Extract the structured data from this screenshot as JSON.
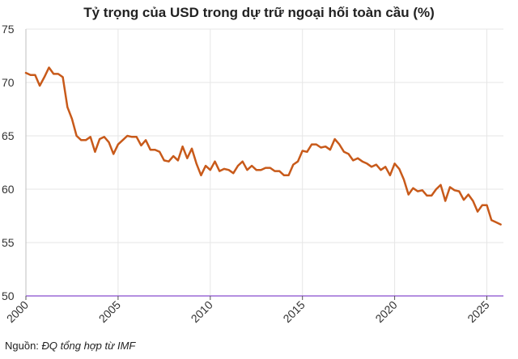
{
  "chart_data": {
    "type": "line",
    "title": "Tỷ trọng của USD trong dự trữ ngoại hối toàn cầu (%)",
    "xlabel": "",
    "ylabel": "",
    "xlim": [
      2000,
      2025.9
    ],
    "ylim": [
      50,
      75
    ],
    "grid": true,
    "x_ticks": [
      2000,
      2005,
      2010,
      2015,
      2020,
      2025
    ],
    "y_ticks": [
      50,
      55,
      60,
      65,
      70,
      75
    ],
    "series": [
      {
        "name": "",
        "color": "#c85a1a",
        "x": [
          2000.0,
          2000.25,
          2000.5,
          2000.75,
          2001.0,
          2001.25,
          2001.5,
          2001.75,
          2002.0,
          2002.25,
          2002.5,
          2002.75,
          2003.0,
          2003.25,
          2003.5,
          2003.75,
          2004.0,
          2004.25,
          2004.5,
          2004.75,
          2005.0,
          2005.25,
          2005.5,
          2005.75,
          2006.0,
          2006.25,
          2006.5,
          2006.75,
          2007.0,
          2007.25,
          2007.5,
          2007.75,
          2008.0,
          2008.25,
          2008.5,
          2008.75,
          2009.0,
          2009.25,
          2009.5,
          2009.75,
          2010.0,
          2010.25,
          2010.5,
          2010.75,
          2011.0,
          2011.25,
          2011.5,
          2011.75,
          2012.0,
          2012.25,
          2012.5,
          2012.75,
          2013.0,
          2013.25,
          2013.5,
          2013.75,
          2014.0,
          2014.25,
          2014.5,
          2014.75,
          2015.0,
          2015.25,
          2015.5,
          2015.75,
          2016.0,
          2016.25,
          2016.5,
          2016.75,
          2017.0,
          2017.25,
          2017.5,
          2017.75,
          2018.0,
          2018.25,
          2018.5,
          2018.75,
          2019.0,
          2019.25,
          2019.5,
          2019.75,
          2020.0,
          2020.25,
          2020.5,
          2020.75,
          2021.0,
          2021.25,
          2021.5,
          2021.75,
          2022.0,
          2022.25,
          2022.5,
          2022.75,
          2023.0,
          2023.25,
          2023.5,
          2023.75,
          2024.0,
          2024.25,
          2024.5,
          2024.75,
          2025.0,
          2025.25,
          2025.5,
          2025.75
        ],
        "values": [
          70.9,
          70.7,
          70.7,
          69.7,
          70.5,
          71.4,
          70.8,
          70.8,
          70.5,
          67.7,
          66.6,
          65.0,
          64.6,
          64.6,
          64.9,
          63.5,
          64.7,
          64.9,
          64.4,
          63.3,
          64.2,
          64.6,
          65.0,
          64.9,
          64.9,
          64.1,
          64.6,
          63.7,
          63.7,
          63.5,
          62.7,
          62.6,
          63.1,
          62.7,
          64.0,
          62.9,
          63.8,
          62.4,
          61.3,
          62.2,
          61.8,
          62.6,
          61.7,
          61.9,
          61.8,
          61.5,
          62.2,
          62.6,
          61.8,
          62.2,
          61.8,
          61.8,
          62.0,
          62.0,
          61.7,
          61.7,
          61.3,
          61.3,
          62.3,
          62.6,
          63.6,
          63.5,
          64.2,
          64.2,
          63.9,
          64.0,
          63.7,
          64.7,
          64.2,
          63.5,
          63.3,
          62.7,
          62.9,
          62.6,
          62.4,
          62.1,
          62.3,
          61.8,
          62.1,
          61.3,
          62.4,
          61.9,
          60.9,
          59.5,
          60.1,
          59.8,
          59.9,
          59.4,
          59.4,
          60.0,
          60.4,
          58.9,
          60.2,
          59.9,
          59.8,
          59.0,
          59.5,
          58.9,
          57.9,
          58.5,
          58.5,
          57.1,
          56.9,
          56.7
        ]
      }
    ]
  },
  "source": {
    "label": "Nguồn:",
    "value": "ĐQ tổng hợp từ IMF"
  }
}
